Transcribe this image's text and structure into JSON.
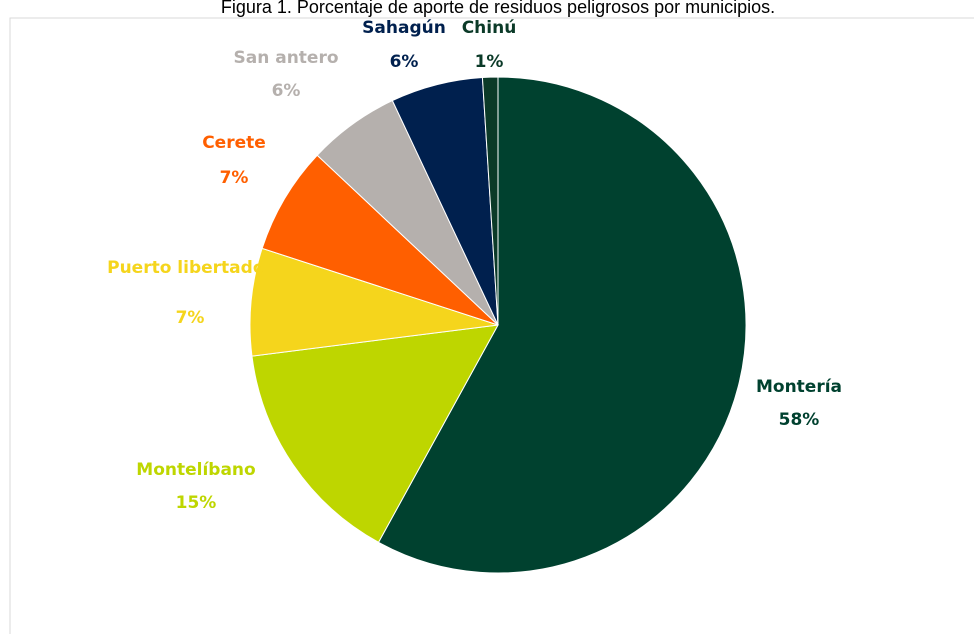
{
  "chart_data": {
    "type": "pie",
    "title": "Figura 1. Porcentaje de aporte de residuos peligrosos por municipios.",
    "categories": [
      "Montería",
      "Montelíbano",
      "Puerto libertador",
      "Cerete",
      "San antero",
      "Sahagún",
      "Chinú"
    ],
    "values": [
      58,
      15,
      7,
      7,
      6,
      6,
      1
    ],
    "value_labels": [
      "58%",
      "15%",
      "7%",
      "7%",
      "6%",
      "6%",
      "1%"
    ],
    "colors": [
      "#00412f",
      "#bed600",
      "#f5d51c",
      "#ff5f00",
      "#b5b0ad",
      "#00204e",
      "#0b3a28"
    ]
  }
}
